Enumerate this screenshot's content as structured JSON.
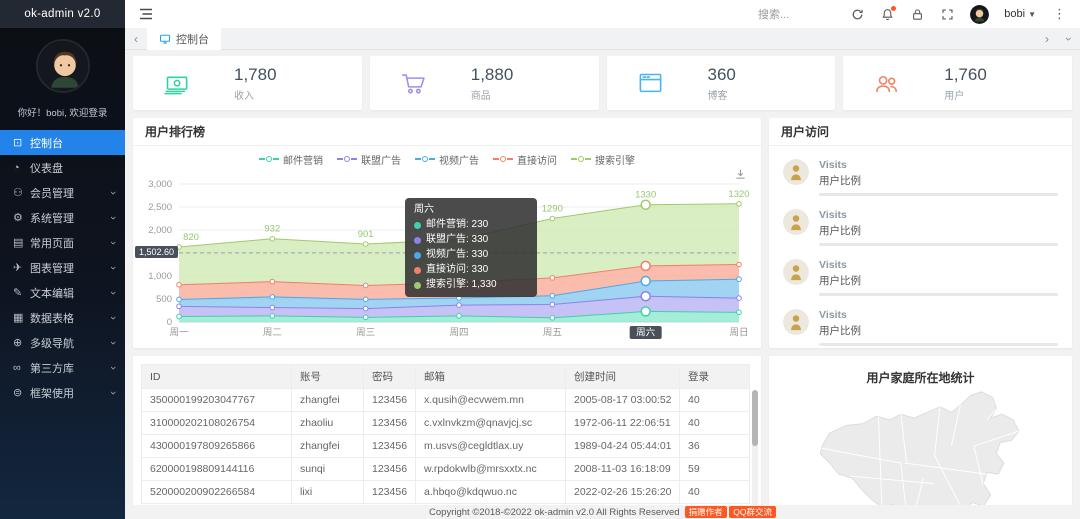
{
  "app": {
    "brand": "ok-admin v2.0",
    "greeting": "你好！bobi, 欢迎登录"
  },
  "topbar": {
    "search_placeholder": "搜索...",
    "username": "bobi"
  },
  "sidebar": {
    "items": [
      {
        "label": "控制台",
        "icon": "console-icon",
        "glyph": "⊡",
        "active": true,
        "expandable": false
      },
      {
        "label": "仪表盘",
        "icon": "dashboard-icon",
        "glyph": "◔",
        "active": false,
        "expandable": false
      },
      {
        "label": "会员管理",
        "icon": "member-icon",
        "glyph": "⚇",
        "active": false,
        "expandable": true
      },
      {
        "label": "系统管理",
        "icon": "system-icon",
        "glyph": "⚙",
        "active": false,
        "expandable": true
      },
      {
        "label": "常用页面",
        "icon": "pages-icon",
        "glyph": "▤",
        "active": false,
        "expandable": true
      },
      {
        "label": "图表管理",
        "icon": "charts-icon",
        "glyph": "✈",
        "active": false,
        "expandable": true
      },
      {
        "label": "文本编辑",
        "icon": "editor-icon",
        "glyph": "✎",
        "active": false,
        "expandable": true
      },
      {
        "label": "数据表格",
        "icon": "datatable-icon",
        "glyph": "▦",
        "active": false,
        "expandable": true
      },
      {
        "label": "多级导航",
        "icon": "multinav-icon",
        "glyph": "⊕",
        "active": false,
        "expandable": true
      },
      {
        "label": "第三方库",
        "icon": "thirdparty-icon",
        "glyph": "∞",
        "active": false,
        "expandable": true
      },
      {
        "label": "框架使用",
        "icon": "framework-icon",
        "glyph": "⊜",
        "active": false,
        "expandable": true
      }
    ]
  },
  "tabs": {
    "active": "控制台"
  },
  "stats": [
    {
      "value": "1,780",
      "label": "收入",
      "icon": "money-icon",
      "color": "#2fd3a2"
    },
    {
      "value": "1,880",
      "label": "商品",
      "icon": "cart-icon",
      "color": "#9d8ef2"
    },
    {
      "value": "360",
      "label": "博客",
      "icon": "browser-icon",
      "color": "#45b4f5"
    },
    {
      "value": "1,760",
      "label": "用户",
      "icon": "users-icon",
      "color": "#f2825f"
    }
  ],
  "chart_card": {
    "title": "用户排行榜"
  },
  "chart_data": {
    "type": "area",
    "stacked": true,
    "x": [
      "周一",
      "周二",
      "周三",
      "周四",
      "周五",
      "周六",
      "周日"
    ],
    "series": [
      {
        "name": "邮件营销",
        "values": [
          120,
          132,
          101,
          134,
          90,
          230,
          210
        ],
        "color": "#3fd0ac",
        "fill": "#8ce8d0"
      },
      {
        "name": "联盟广告",
        "values": [
          220,
          182,
          191,
          234,
          290,
          330,
          310
        ],
        "color": "#8d82ea",
        "fill": "#b9b3f2"
      },
      {
        "name": "视频广告",
        "values": [
          150,
          232,
          201,
          154,
          190,
          330,
          410
        ],
        "color": "#4aa9e9",
        "fill": "#8ac8f0"
      },
      {
        "name": "直接访问",
        "values": [
          320,
          332,
          301,
          334,
          390,
          330,
          320
        ],
        "color": "#f0806a",
        "fill": "#f8ab98"
      },
      {
        "name": "搜索引擎",
        "values": [
          820,
          932,
          901,
          934,
          1290,
          1330,
          1320
        ],
        "color": "#9ecb6a",
        "fill": "#cfeab4",
        "show_labels": true
      }
    ],
    "ylim": [
      0,
      3000
    ],
    "yticks": [
      "0",
      "500",
      "1,000",
      "1,500",
      "2,000",
      "2,500",
      "3,000"
    ],
    "highlight_index": 5,
    "axis_pointer": {
      "label": "1,502.60",
      "value": 1502.6
    },
    "tooltip": {
      "title": "周六",
      "values": [
        "230",
        "330",
        "330",
        "330",
        "1,330"
      ]
    },
    "legend_position": "top",
    "grid": true
  },
  "visits_card": {
    "title": "用户访问",
    "items": [
      {
        "title": "Visits",
        "subtitle": "用户比例"
      },
      {
        "title": "Visits",
        "subtitle": "用户比例"
      },
      {
        "title": "Visits",
        "subtitle": "用户比例"
      },
      {
        "title": "Visits",
        "subtitle": "用户比例"
      }
    ]
  },
  "table": {
    "columns": [
      "ID",
      "账号",
      "密码",
      "邮箱",
      "创建时间",
      "登录"
    ],
    "rows": [
      [
        "350000199203047767",
        "zhangfei",
        "123456",
        "x.qusih@ecvwem.mn",
        "2005-08-17 03:00:52",
        "40"
      ],
      [
        "310000202108026754",
        "zhaoliu",
        "123456",
        "c.vxlnvkzm@qnavjcj.sc",
        "1972-06-11 22:06:51",
        "40"
      ],
      [
        "430000197809265866",
        "zhangfei",
        "123456",
        "m.usvs@cegldtlax.uy",
        "1989-04-24 05:44:01",
        "36"
      ],
      [
        "620000198809144116",
        "sunqi",
        "123456",
        "w.rpdokwlb@mrsxxtx.nc",
        "2008-11-03 16:18:09",
        "59"
      ],
      [
        "520000200902266584",
        "lixi",
        "123456",
        "a.hbqo@kdqwuo.nc",
        "2022-02-26 15:26:20",
        "40"
      ]
    ]
  },
  "map_card": {
    "title": "用户家庭所在地统计"
  },
  "footer": {
    "copyright": "Copyright ©2018-©2022 ok-admin v2.0 All Rights Reserved",
    "badges": [
      "捐赠作者",
      "QQ群交流"
    ]
  }
}
